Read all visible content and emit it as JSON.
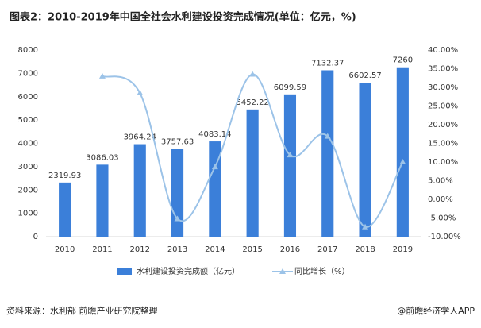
{
  "chart_data": {
    "type": "bar_line",
    "title": "图表2：2010-2019年中国全社会水利建设投资完成情况(单位：亿元，%)",
    "source": "资料来源：水利部 前瞻产业研究院整理",
    "credit": "@前瞻经济学人APP",
    "categories": [
      "2010",
      "2011",
      "2012",
      "2013",
      "2014",
      "2015",
      "2016",
      "2017",
      "2018",
      "2019"
    ],
    "series": [
      {
        "name": "水利建设投资完成额（亿元）",
        "color": "#3b7fd9",
        "type": "bar",
        "values": [
          2319.93,
          3086.03,
          3964.24,
          3757.63,
          4083.14,
          5452.22,
          6099.59,
          7132.37,
          6602.57,
          7260
        ]
      },
      {
        "name": "同比增长（%）",
        "color": "#9cc3e8",
        "type": "line",
        "axis": "y2",
        "values": [
          null,
          33.0,
          28.5,
          -5.2,
          8.7,
          33.5,
          11.9,
          16.9,
          -7.4,
          10.0
        ]
      }
    ],
    "ylim": [
      0,
      8000
    ],
    "yticks": [
      0,
      1000,
      2000,
      3000,
      4000,
      5000,
      6000,
      7000,
      8000
    ],
    "y2lim": [
      -10,
      40
    ],
    "y2ticks": [
      {
        "value": -10,
        "label": "-10.00%"
      },
      {
        "value": -5,
        "label": "-5.00%"
      },
      {
        "value": 0,
        "label": "0.00%"
      },
      {
        "value": 5,
        "label": "5.00%"
      },
      {
        "value": 10,
        "label": "10.00%"
      },
      {
        "value": 15,
        "label": "15.00%"
      },
      {
        "value": 20,
        "label": "20.00%"
      },
      {
        "value": 25,
        "label": "25.00%"
      },
      {
        "value": 30,
        "label": "30.00%"
      },
      {
        "value": 35,
        "label": "35.00%"
      },
      {
        "value": 40,
        "label": "40.00%"
      }
    ],
    "grid": false
  }
}
